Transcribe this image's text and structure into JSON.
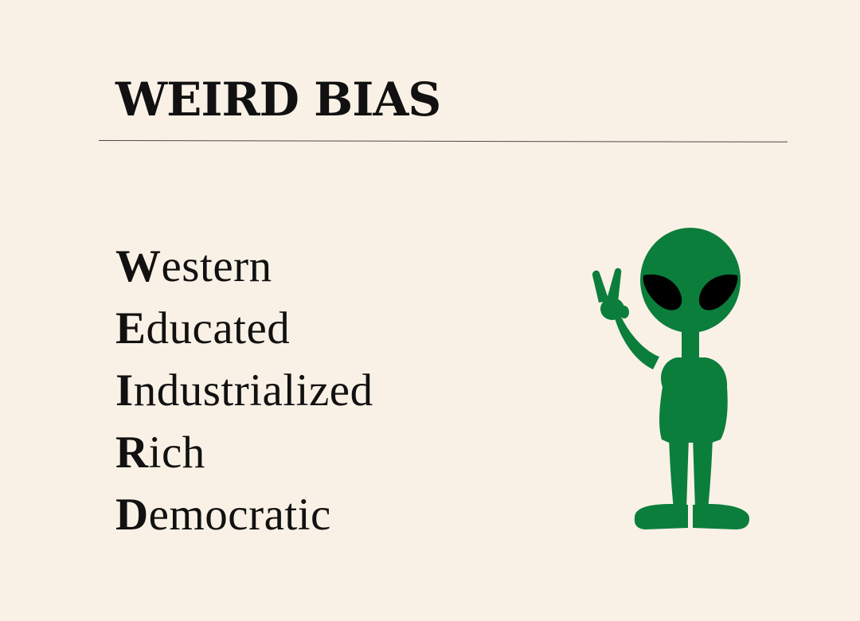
{
  "title": "WEIRD BIAS",
  "acronym": [
    {
      "initial": "W",
      "rest": "estern"
    },
    {
      "initial": "E",
      "rest": "ducated"
    },
    {
      "initial": "I",
      "rest": "ndustrialized"
    },
    {
      "initial": "R",
      "rest": "ich"
    },
    {
      "initial": "D",
      "rest": "emocratic"
    }
  ],
  "colors": {
    "background": "#faf1e6",
    "text": "#111111",
    "alien": "#0b7e3c",
    "alien_eyes": "#000000"
  },
  "illustration": {
    "icon": "alien-peace-sign-icon"
  }
}
